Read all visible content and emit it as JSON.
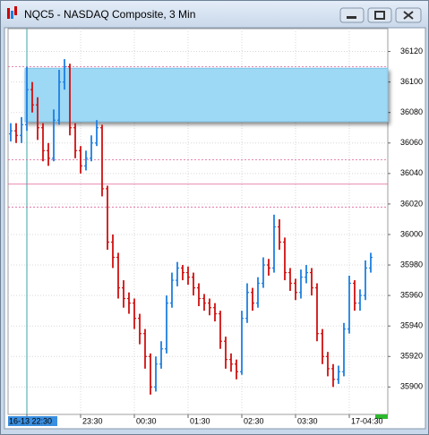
{
  "chart_data": {
    "type": "ohlc",
    "title": "NQC5 - NASDAQ Composite, 3 Min",
    "up_color": "#1e7fe0",
    "down_color": "#d01010",
    "ylim": [
      35882,
      36135
    ],
    "yticks": [
      35900,
      35920,
      35940,
      35960,
      35980,
      36000,
      36020,
      36040,
      36060,
      36080,
      36100,
      36120
    ],
    "xlim": [
      -0.5,
      70.17
    ],
    "xticks": [
      {
        "value": 3,
        "label": "16-13 22:30"
      },
      {
        "value": 13,
        "label": "23:30"
      },
      {
        "value": 23,
        "label": "00:30"
      },
      {
        "value": 33,
        "label": "01:30"
      },
      {
        "value": 43,
        "label": "02:30"
      },
      {
        "value": 53,
        "label": "03:30"
      },
      {
        "value": 63,
        "label": "17-04:30"
      }
    ],
    "grid": true,
    "zone": {
      "from": 36074,
      "to": 36109,
      "color": "#9dd8f5"
    },
    "levels": [
      {
        "value": 36110,
        "dashed": true
      },
      {
        "value": 36049,
        "dashed": true
      },
      {
        "value": 36033,
        "dashed": false
      },
      {
        "value": 36018,
        "dashed": true
      }
    ],
    "open": [
      36066,
      36068,
      36065,
      36072,
      36095,
      36085,
      36070,
      36055,
      36050,
      36075,
      36100,
      36110,
      36070,
      36055,
      36045,
      36050,
      36060,
      36070,
      36030,
      35995,
      35985,
      35965,
      35958,
      35955,
      35945,
      35935,
      35920,
      35900,
      35915,
      35925,
      35955,
      35970,
      35978,
      35975,
      35972,
      35965,
      35958,
      35955,
      35952,
      35948,
      35930,
      35918,
      35915,
      35910,
      35945,
      35962,
      35955,
      35968,
      35980,
      35978,
      36005,
      35995,
      35975,
      35968,
      35962,
      35972,
      35975,
      35965,
      35935,
      35920,
      35912,
      35905,
      35910,
      35938,
      35968,
      35955,
      35960,
      35978
    ],
    "high": [
      36073,
      36073,
      36077,
      36110,
      36100,
      36090,
      36073,
      36060,
      36082,
      36108,
      36115,
      36112,
      36073,
      36058,
      36055,
      36065,
      36075,
      36072,
      36032,
      36000,
      35988,
      35970,
      35962,
      35958,
      35948,
      35938,
      35922,
      35920,
      35930,
      35960,
      35975,
      35982,
      35980,
      35979,
      35975,
      35968,
      35961,
      35958,
      35955,
      35950,
      35933,
      35922,
      35918,
      35950,
      35968,
      35965,
      35972,
      35985,
      35984,
      36013,
      36010,
      35998,
      35978,
      35971,
      35977,
      35980,
      35978,
      35968,
      35938,
      35923,
      35915,
      35914,
      35942,
      35973,
      35970,
      35964,
      35983,
      35988
    ],
    "low": [
      36061,
      36060,
      36060,
      36068,
      36080,
      36062,
      36048,
      36045,
      36048,
      36072,
      36095,
      36065,
      36050,
      36040,
      36042,
      36048,
      36058,
      36025,
      35990,
      35978,
      35958,
      35952,
      35948,
      35938,
      35928,
      35912,
      35895,
      35897,
      35912,
      35922,
      35952,
      35966,
      35970,
      35967,
      35960,
      35953,
      35950,
      35947,
      35943,
      35925,
      35912,
      35910,
      35905,
      35908,
      35942,
      35950,
      35952,
      35965,
      35973,
      35975,
      35990,
      35970,
      35963,
      35957,
      35958,
      35968,
      35960,
      35930,
      35915,
      35907,
      35900,
      35902,
      35907,
      35935,
      35950,
      35950,
      35957,
      35975
    ],
    "close": [
      36068,
      36065,
      36072,
      36095,
      36085,
      36070,
      36055,
      36050,
      36075,
      36100,
      36110,
      36070,
      36055,
      36045,
      36050,
      36060,
      36070,
      36030,
      35995,
      35985,
      35965,
      35958,
      35955,
      35945,
      35935,
      35920,
      35900,
      35915,
      35925,
      35955,
      35970,
      35978,
      35975,
      35972,
      35965,
      35958,
      35955,
      35952,
      35948,
      35930,
      35918,
      35915,
      35910,
      35945,
      35962,
      35955,
      35968,
      35980,
      35978,
      36005,
      35995,
      35975,
      35968,
      35962,
      35972,
      35975,
      35965,
      35935,
      35920,
      35912,
      35905,
      35910,
      35938,
      35968,
      35955,
      35960,
      35978,
      35985
    ]
  }
}
